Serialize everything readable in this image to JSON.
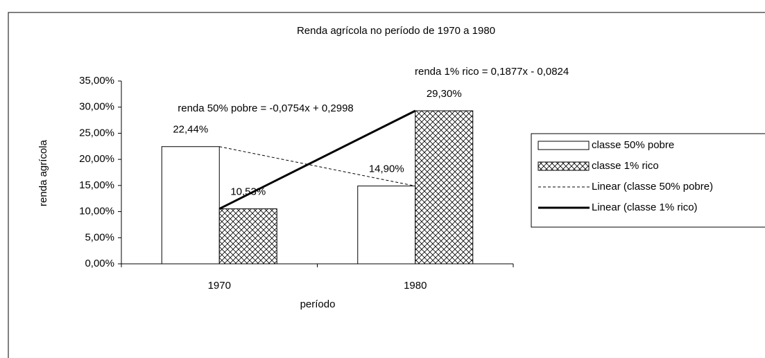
{
  "chart_data": {
    "type": "bar",
    "title": "Renda agrícola no período de 1970 a 1980",
    "x_label": "período",
    "y_label": "renda agrícola",
    "categories": [
      "1970",
      "1980"
    ],
    "series": [
      {
        "name": "classe 50% pobre",
        "color": "#ffffff",
        "pattern": "none",
        "values": [
          22.44,
          14.9
        ],
        "value_labels": [
          "22,44%",
          "14,90%"
        ]
      },
      {
        "name": "classe 1% rico",
        "color": "#ffffff",
        "pattern": "crosshatch",
        "values": [
          10.53,
          29.3
        ],
        "value_labels": [
          "10,53%",
          "29,30%"
        ]
      }
    ],
    "trendlines": [
      {
        "name": "Linear (classe 50% pobre)",
        "style": "dashed",
        "color": "#000000",
        "equation": "renda 50% pobre = -0,0754x + 0,2998"
      },
      {
        "name": "Linear (classe 1% rico)",
        "style": "solid",
        "color": "#000000",
        "equation": "renda 1% rico = 0,1877x - 0,0824"
      }
    ],
    "ylim": [
      0,
      35
    ],
    "yticks": [
      {
        "value": 0,
        "label": "0,00%"
      },
      {
        "value": 5,
        "label": "5,00%"
      },
      {
        "value": 10,
        "label": "10,00%"
      },
      {
        "value": 15,
        "label": "15,00%"
      },
      {
        "value": 20,
        "label": "20,00%"
      },
      {
        "value": 25,
        "label": "25,00%"
      },
      {
        "value": 30,
        "label": "30,00%"
      },
      {
        "value": 35,
        "label": "35,00%"
      }
    ],
    "grid": false,
    "legend": "right"
  }
}
